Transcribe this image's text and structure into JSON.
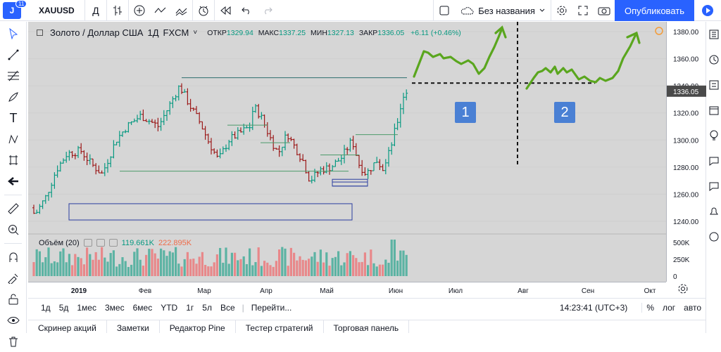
{
  "app": {
    "logo_text": "J",
    "logo_badge": "11"
  },
  "header": {
    "symbol": "XAUUSD",
    "interval": "Д",
    "layout_name": "Без названия",
    "publish_label": "Опубликовать"
  },
  "legend": {
    "title": "Золото / Доллар США",
    "interval": "1Д",
    "exchange": "FXCM",
    "open_label": "ОТКР",
    "open": "1329.94",
    "high_label": "МАКС",
    "high": "1337.25",
    "low_label": "МИН",
    "low": "1327.13",
    "close_label": "ЗАКР",
    "close": "1336.05",
    "change": "+6.11 (+0.46%)"
  },
  "volume_legend": {
    "label": "Объём (20)",
    "v1": "119.661K",
    "v2": "222.895K"
  },
  "price_axis": {
    "ticks": [
      "1380.00",
      "1360.00",
      "1340.00",
      "1320.00",
      "1300.00",
      "1280.00",
      "1260.00",
      "1240.00"
    ],
    "current": "1336.05",
    "vol_ticks": [
      "500K",
      "250K",
      "0"
    ]
  },
  "time_axis": {
    "ticks": [
      "2019",
      "Фев",
      "Мар",
      "Апр",
      "Май",
      "Июн",
      "Июл",
      "Авг",
      "Сен",
      "Окт"
    ]
  },
  "annotations": {
    "box1": "1",
    "box2": "2"
  },
  "bottom": {
    "ranges": [
      "1д",
      "5д",
      "1мес",
      "3мес",
      "6мес",
      "YTD",
      "1г",
      "5л",
      "Все"
    ],
    "goto": "Перейти...",
    "clock": "14:23:41 (UTC+3)",
    "pct": "%",
    "log": "лог",
    "auto": "авто"
  },
  "tabs": [
    "Скринер акций",
    "Заметки",
    "Редактор Pine",
    "Тестер стратегий",
    "Торговая панель"
  ],
  "colors": {
    "bull": "#089981",
    "bear": "#9c1b1b",
    "draw_green": "#5aa61e",
    "accent": "#2962ff"
  }
}
